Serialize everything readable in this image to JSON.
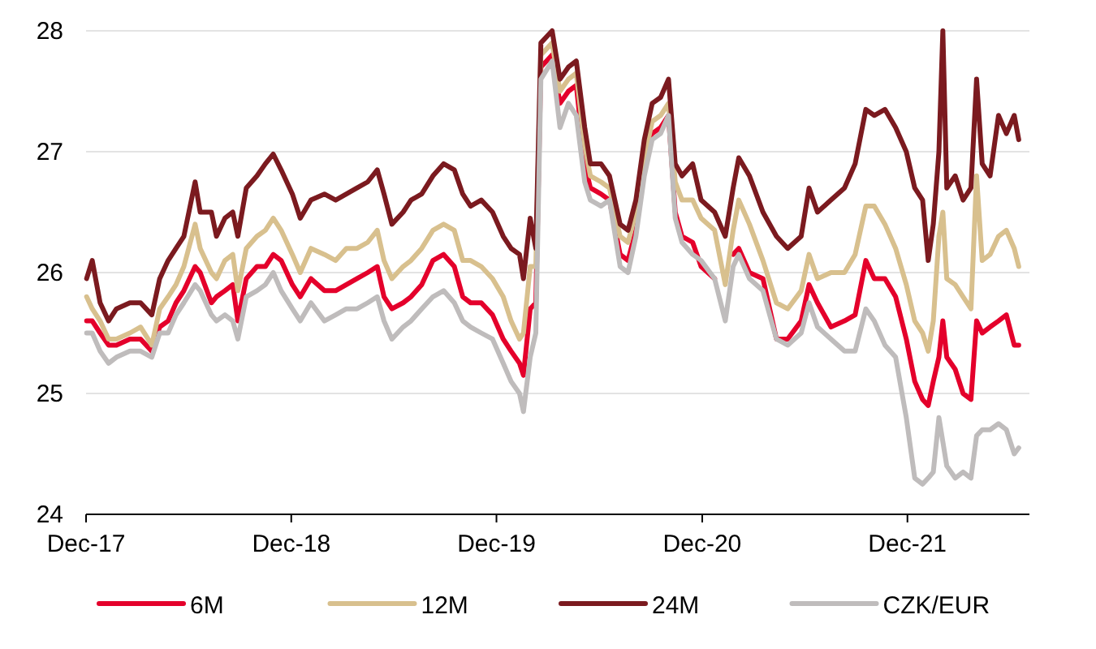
{
  "chart_data": {
    "type": "line",
    "x": [
      "2017-12-02",
      "2017-12-12",
      "2017-12-26",
      "2018-01-10",
      "2018-01-24",
      "2018-02-17",
      "2018-03-08",
      "2018-03-28",
      "2018-04-11",
      "2018-04-26",
      "2018-05-10",
      "2018-05-24",
      "2018-06-13",
      "2018-06-22",
      "2018-07-12",
      "2018-07-21",
      "2018-08-05",
      "2018-08-19",
      "2018-08-28",
      "2018-09-12",
      "2018-10-01",
      "2018-10-16",
      "2018-10-30",
      "2018-11-13",
      "2018-12-03",
      "2018-12-17",
      "2019-01-05",
      "2019-01-29",
      "2019-02-18",
      "2019-03-09",
      "2019-03-28",
      "2019-04-16",
      "2019-05-03",
      "2019-05-15",
      "2019-05-29",
      "2019-06-18",
      "2019-07-02",
      "2019-07-21",
      "2019-08-10",
      "2019-08-29",
      "2019-09-17",
      "2019-10-02",
      "2019-10-16",
      "2019-11-04",
      "2019-11-24",
      "2019-12-13",
      "2019-12-27",
      "2020-01-11",
      "2020-01-18",
      "2020-01-30",
      "2020-02-09",
      "2020-02-18",
      "2020-03-09",
      "2020-03-23",
      "2020-04-07",
      "2020-04-21",
      "2020-05-06",
      "2020-05-16",
      "2020-06-04",
      "2020-06-19",
      "2020-07-08",
      "2020-07-22",
      "2020-08-05",
      "2020-08-20",
      "2020-09-03",
      "2020-09-18",
      "2020-10-02",
      "2020-10-14",
      "2020-10-26",
      "2020-11-14",
      "2020-11-29",
      "2020-12-23",
      "2021-01-11",
      "2021-01-25",
      "2021-02-04",
      "2021-02-23",
      "2021-03-19",
      "2021-04-12",
      "2021-05-02",
      "2021-05-26",
      "2021-06-09",
      "2021-06-24",
      "2021-07-18",
      "2021-08-11",
      "2021-08-30",
      "2021-09-18",
      "2021-10-03",
      "2021-10-22",
      "2021-11-10",
      "2021-11-29",
      "2021-12-14",
      "2021-12-28",
      "2022-01-07",
      "2022-01-16",
      "2022-01-26",
      "2022-02-02",
      "2022-02-09",
      "2022-02-24",
      "2022-03-10",
      "2022-03-24",
      "2022-04-03",
      "2022-04-13",
      "2022-04-27",
      "2022-05-12",
      "2022-05-26",
      "2022-06-09",
      "2022-06-17"
    ],
    "series": [
      {
        "name": "6M",
        "color": "#e4002b",
        "values": [
          25.6,
          25.6,
          25.5,
          25.4,
          25.4,
          25.45,
          25.45,
          25.35,
          25.55,
          25.6,
          25.75,
          25.85,
          26.05,
          26.0,
          25.75,
          25.8,
          25.85,
          25.9,
          25.6,
          25.95,
          26.05,
          26.05,
          26.15,
          26.1,
          25.9,
          25.8,
          25.95,
          25.85,
          25.85,
          25.9,
          25.95,
          26.0,
          26.05,
          25.8,
          25.7,
          25.75,
          25.8,
          25.9,
          26.1,
          26.15,
          26.05,
          25.8,
          25.75,
          25.75,
          25.65,
          25.45,
          25.35,
          25.25,
          25.15,
          25.7,
          25.75,
          27.7,
          27.8,
          27.4,
          27.5,
          27.55,
          26.9,
          26.7,
          26.65,
          26.6,
          26.15,
          26.1,
          26.35,
          26.85,
          27.15,
          27.2,
          27.3,
          26.5,
          26.3,
          26.25,
          26.05,
          25.95,
          null,
          26.15,
          26.2,
          26.0,
          25.95,
          25.45,
          25.45,
          25.6,
          25.9,
          25.75,
          25.55,
          25.6,
          25.65,
          26.1,
          25.95,
          25.95,
          25.8,
          25.45,
          25.1,
          24.95,
          24.9,
          25.1,
          25.3,
          25.6,
          25.3,
          25.2,
          25.0,
          24.95,
          25.6,
          25.5,
          25.55,
          25.6,
          25.65,
          25.4,
          25.4
        ]
      },
      {
        "name": "12M",
        "color": "#d8c08e",
        "values": [
          25.8,
          25.7,
          25.6,
          25.45,
          25.45,
          25.5,
          25.55,
          25.4,
          25.7,
          25.8,
          25.9,
          26.05,
          26.4,
          26.2,
          26.0,
          25.95,
          26.1,
          26.15,
          25.85,
          26.2,
          26.3,
          26.35,
          26.45,
          26.35,
          26.15,
          26.0,
          26.2,
          26.15,
          26.1,
          26.2,
          26.2,
          26.25,
          26.35,
          26.1,
          25.95,
          26.05,
          26.1,
          26.2,
          26.35,
          26.4,
          26.35,
          26.1,
          26.1,
          26.05,
          25.95,
          25.8,
          25.6,
          25.45,
          25.5,
          26.05,
          26.05,
          27.8,
          27.9,
          27.5,
          27.6,
          27.65,
          27.05,
          26.8,
          26.75,
          26.7,
          26.3,
          26.25,
          26.5,
          26.95,
          27.25,
          27.3,
          27.4,
          26.75,
          26.6,
          26.6,
          26.45,
          26.35,
          25.9,
          26.35,
          26.6,
          26.4,
          26.1,
          25.75,
          25.7,
          25.85,
          26.15,
          25.95,
          26.0,
          26.0,
          26.15,
          26.55,
          26.55,
          26.4,
          26.2,
          25.9,
          25.6,
          25.5,
          25.35,
          25.6,
          26.3,
          26.5,
          25.95,
          25.9,
          25.8,
          25.7,
          26.8,
          26.1,
          26.15,
          26.3,
          26.35,
          26.2,
          26.05
        ]
      },
      {
        "name": "24M",
        "color": "#7b1a1f",
        "values": [
          25.95,
          26.1,
          25.75,
          25.6,
          25.7,
          25.75,
          25.75,
          25.65,
          25.95,
          26.1,
          26.2,
          26.3,
          26.75,
          26.5,
          26.5,
          26.3,
          26.45,
          26.5,
          26.3,
          26.7,
          26.8,
          26.9,
          26.98,
          26.85,
          26.65,
          26.45,
          26.6,
          26.65,
          26.6,
          26.65,
          26.7,
          26.75,
          26.85,
          26.65,
          26.4,
          26.5,
          26.6,
          26.65,
          26.8,
          26.9,
          26.85,
          26.65,
          26.55,
          26.6,
          26.5,
          26.3,
          26.2,
          26.15,
          25.95,
          26.45,
          26.2,
          27.9,
          28.0,
          27.6,
          27.7,
          27.75,
          27.2,
          26.9,
          26.9,
          26.8,
          26.4,
          26.35,
          26.6,
          27.1,
          27.4,
          27.45,
          27.6,
          26.9,
          26.8,
          26.9,
          26.6,
          26.5,
          26.3,
          26.7,
          26.95,
          26.8,
          26.5,
          26.3,
          26.2,
          26.3,
          26.7,
          26.5,
          26.6,
          26.7,
          26.9,
          27.35,
          27.3,
          27.35,
          27.2,
          27.0,
          26.7,
          26.6,
          26.1,
          26.4,
          27.0,
          28.0,
          26.7,
          26.8,
          26.6,
          26.7,
          27.6,
          26.9,
          26.8,
          27.3,
          27.15,
          27.3,
          27.1
        ]
      },
      {
        "name": "CZK/EUR",
        "color": "#bfbcbc",
        "values": [
          25.5,
          25.5,
          25.35,
          25.25,
          25.3,
          25.35,
          25.35,
          25.3,
          25.5,
          25.5,
          25.65,
          25.75,
          25.9,
          25.85,
          25.65,
          25.6,
          25.65,
          25.6,
          25.45,
          25.8,
          25.85,
          25.9,
          26.0,
          25.85,
          25.7,
          25.6,
          25.75,
          25.6,
          25.65,
          25.7,
          25.7,
          25.75,
          25.8,
          25.6,
          25.45,
          25.55,
          25.6,
          25.7,
          25.8,
          25.85,
          25.75,
          25.6,
          25.55,
          25.5,
          25.45,
          25.25,
          25.1,
          25.0,
          24.85,
          25.3,
          25.5,
          27.6,
          27.75,
          27.2,
          27.4,
          27.3,
          26.75,
          26.6,
          26.55,
          26.6,
          26.05,
          26.0,
          26.3,
          26.8,
          27.1,
          27.15,
          27.3,
          26.45,
          26.25,
          26.15,
          26.1,
          25.95,
          25.6,
          26.05,
          26.15,
          25.95,
          25.85,
          25.45,
          25.4,
          25.5,
          25.75,
          25.55,
          25.45,
          25.35,
          25.35,
          25.7,
          25.6,
          25.4,
          25.3,
          24.8,
          24.3,
          24.25,
          24.3,
          24.35,
          24.8,
          24.6,
          24.4,
          24.3,
          24.35,
          24.3,
          24.65,
          24.7,
          24.7,
          24.75,
          24.7,
          24.5,
          24.55
        ]
      }
    ],
    "xlim": [
      "2017-12-01",
      "2022-07-06"
    ],
    "xticks": [
      {
        "value": "2017-12-01",
        "label": "Dec-17"
      },
      {
        "value": "2018-12-01",
        "label": "Dec-18"
      },
      {
        "value": "2019-12-01",
        "label": "Dec-19"
      },
      {
        "value": "2020-12-01",
        "label": "Dec-20"
      },
      {
        "value": "2021-12-01",
        "label": "Dec-21"
      }
    ],
    "ylim": [
      24,
      28
    ],
    "yticks": [
      24,
      25,
      26,
      27,
      28
    ],
    "grid": "y",
    "legend": "bottom",
    "line_style": "solid",
    "marker": "none"
  }
}
